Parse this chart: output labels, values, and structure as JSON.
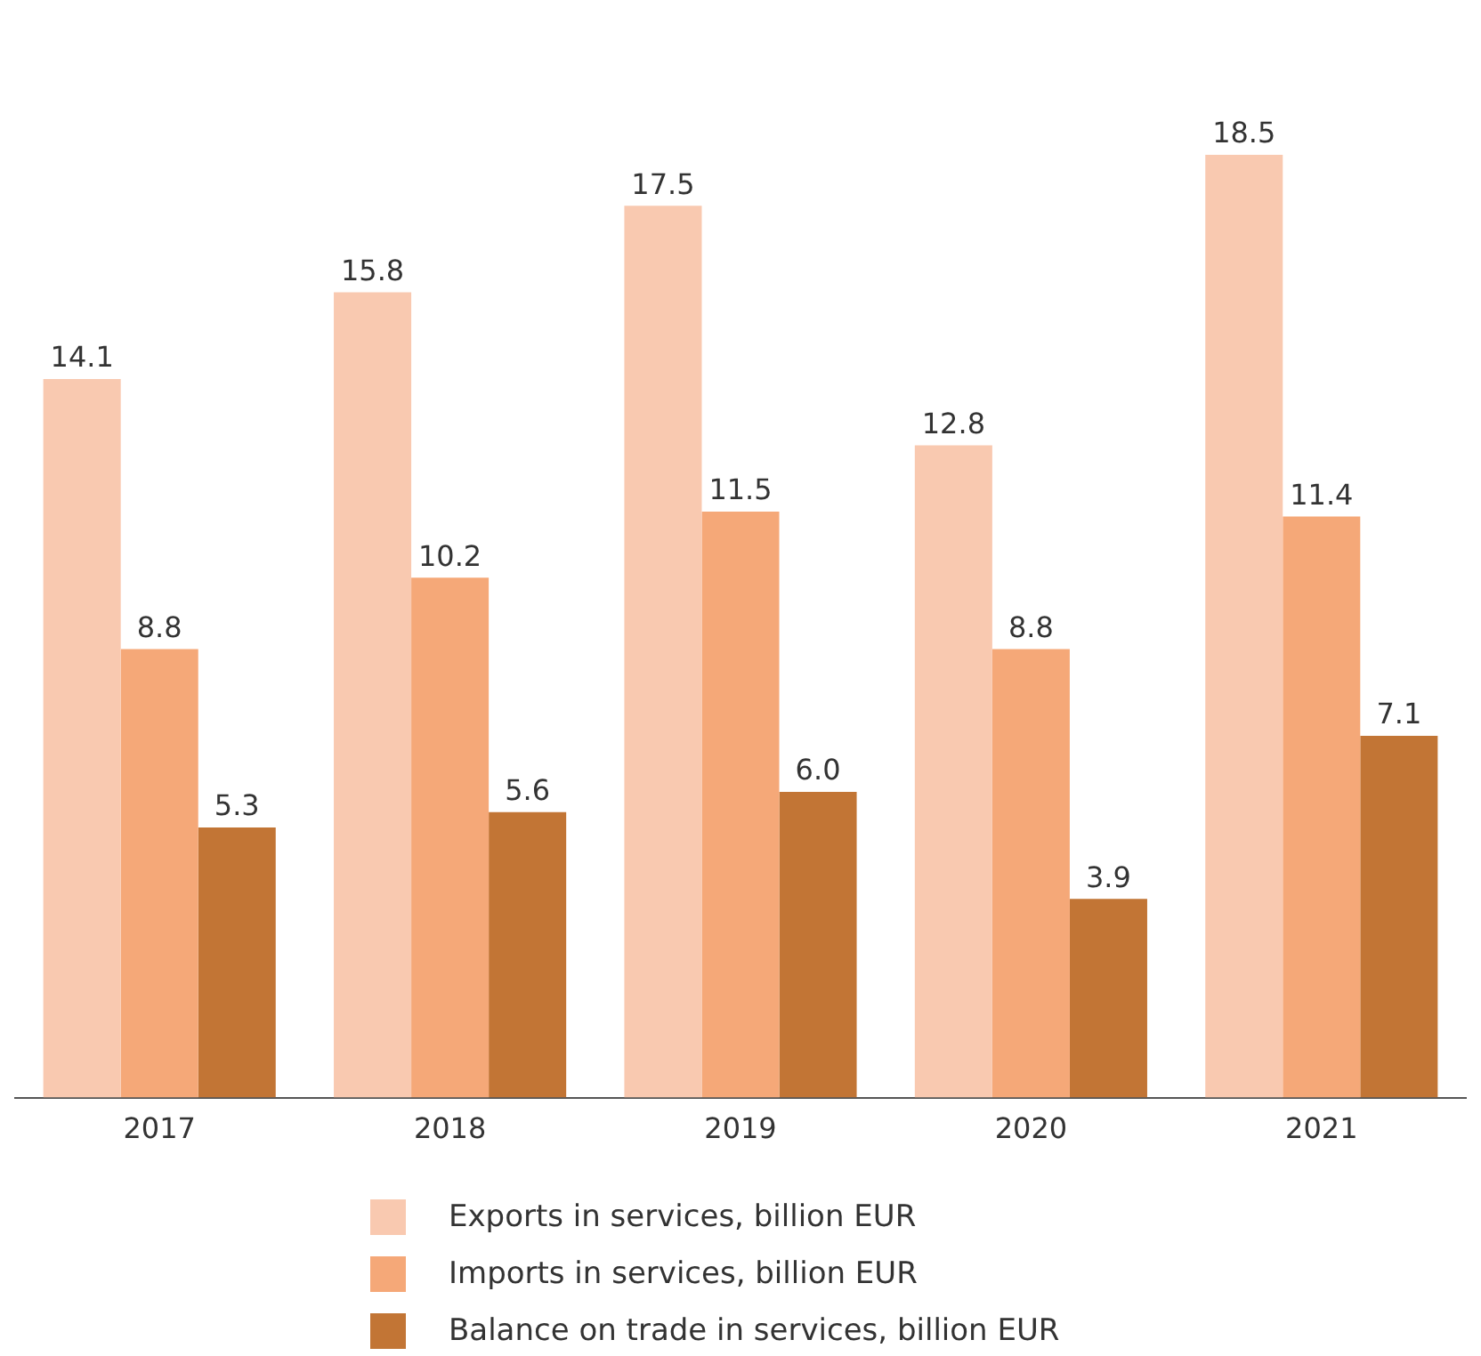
{
  "chart_data": {
    "type": "bar",
    "categories": [
      "2017",
      "2018",
      "2019",
      "2020",
      "2021"
    ],
    "series": [
      {
        "name": "Exports in services, billion EUR",
        "color": "#f9c9b0",
        "values": [
          14.1,
          15.8,
          17.5,
          12.8,
          18.5
        ],
        "value_labels": [
          "14.1",
          "15.8",
          "17.5",
          "12.8",
          "18.5"
        ]
      },
      {
        "name": "Imports in services, billion EUR",
        "color": "#f5a878",
        "values": [
          8.8,
          10.2,
          11.5,
          8.8,
          11.4
        ],
        "value_labels": [
          "8.8",
          "10.2",
          "11.5",
          "8.8",
          "11.4"
        ]
      },
      {
        "name": "Balance on trade in services, billion EUR",
        "color": "#c27535",
        "values": [
          5.3,
          5.6,
          6.0,
          3.9,
          7.1
        ],
        "value_labels": [
          "5.3",
          "5.6",
          "6.0",
          "3.9",
          "7.1"
        ]
      }
    ],
    "tick_labels": "x",
    "grid": false,
    "legend": "bottom"
  }
}
